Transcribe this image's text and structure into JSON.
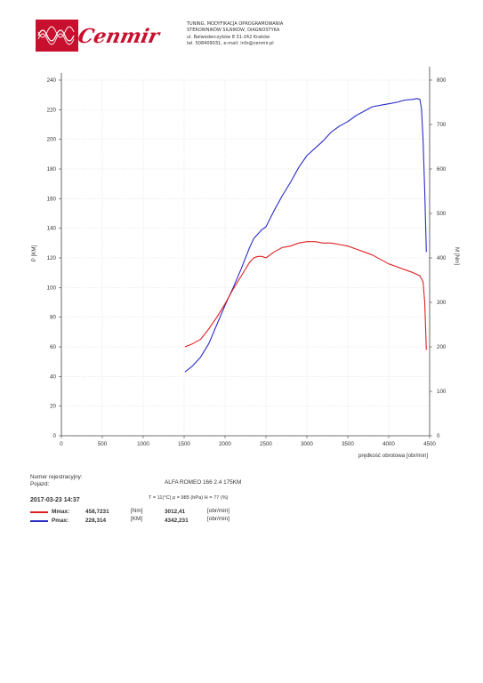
{
  "header": {
    "logo_text": "Cenmir",
    "lines": [
      "TUNING, MODYFIKACJA OPROGRAMOWANIA",
      "STEROWNIKÓW SILNIKÓW, DIAGNOSTYKA",
      "ul. Balwederczyków 8 31-242 Kraków",
      "tel. 508409031, e-mail: info@cenmir.pl"
    ]
  },
  "chart_data": {
    "type": "line",
    "xlabel": "prędkość obrotowa [obr/min]",
    "ylabel_left": "P [KM]",
    "ylabel_right": "M [Nm]",
    "xlim": [
      0,
      4500
    ],
    "ylim_left": [
      0,
      240
    ],
    "ylim_right": [
      0,
      800
    ],
    "x_ticks": [
      "0",
      "500",
      "1000",
      "1500",
      "2000",
      "2500",
      "3000",
      "3500",
      "4000",
      "4500"
    ],
    "y_left_ticks": [
      "0",
      "20",
      "40",
      "60",
      "80",
      "100",
      "120",
      "140",
      "160",
      "180",
      "200",
      "220",
      "240"
    ],
    "y_right_ticks": [
      "0",
      "100",
      "200",
      "300",
      "400",
      "500",
      "600",
      "700",
      "800"
    ],
    "grid": true,
    "series": [
      {
        "axis": "left",
        "color": "#2b2bc8",
        "x": [
          1510,
          1600,
          1700,
          1800,
          1900,
          2000,
          2100,
          2200,
          2300,
          2350,
          2400,
          2450,
          2500,
          2600,
          2700,
          2800,
          2900,
          3000,
          3100,
          3200,
          3300,
          3400,
          3500,
          3600,
          3700,
          3800,
          3900,
          4000,
          4100,
          4200,
          4300,
          4342,
          4380,
          4400,
          4420,
          4440,
          4460
        ],
        "y": [
          43,
          47,
          53,
          62,
          75,
          88,
          100,
          113,
          127,
          133,
          136,
          139,
          141,
          152,
          162,
          171,
          181,
          189,
          194,
          199,
          205,
          209,
          212,
          216,
          219,
          222,
          223,
          224,
          225,
          226.5,
          227,
          227.5,
          227,
          221,
          200,
          165,
          124
        ]
      },
      {
        "axis": "left",
        "color": "#e02020",
        "x": [
          1510,
          1600,
          1700,
          1800,
          1900,
          2000,
          2100,
          2200,
          2300,
          2350,
          2400,
          2450,
          2500,
          2600,
          2700,
          2800,
          2900,
          3000,
          3100,
          3200,
          3300,
          3400,
          3500,
          3600,
          3700,
          3800,
          3900,
          4000,
          4100,
          4200,
          4300,
          4380,
          4420,
          4440,
          4460
        ],
        "y": [
          60,
          62,
          65,
          72,
          80,
          89,
          99,
          108,
          117,
          120,
          121,
          121,
          120,
          124,
          127,
          128,
          130,
          131,
          131,
          130,
          130,
          129,
          128,
          126,
          124,
          122,
          119,
          116,
          114,
          112,
          110,
          108,
          104,
          90,
          58
        ]
      }
    ]
  },
  "info": {
    "reg_label": "Numer rejestracyjny:",
    "vehicle_label": "Pojazd:",
    "vehicle": "ALFA ROMEO   166 2.4 175KM",
    "datetime": "2017-03-23  14:37",
    "conditions": "T = 11(°C)  p = 985 (hPa)  H = 77 (%)",
    "rows": [
      {
        "label": "Mmax:",
        "value": "458,7231",
        "unit": "[Nm]",
        "rpm": "3012,41",
        "rpm_unit": "[obr/min]",
        "color": "#e02020"
      },
      {
        "label": "Pmax:",
        "value": "228,314",
        "unit": "[KM]",
        "rpm": "4342,231",
        "rpm_unit": "[obr/min]",
        "color": "#2b2bc8"
      }
    ]
  }
}
